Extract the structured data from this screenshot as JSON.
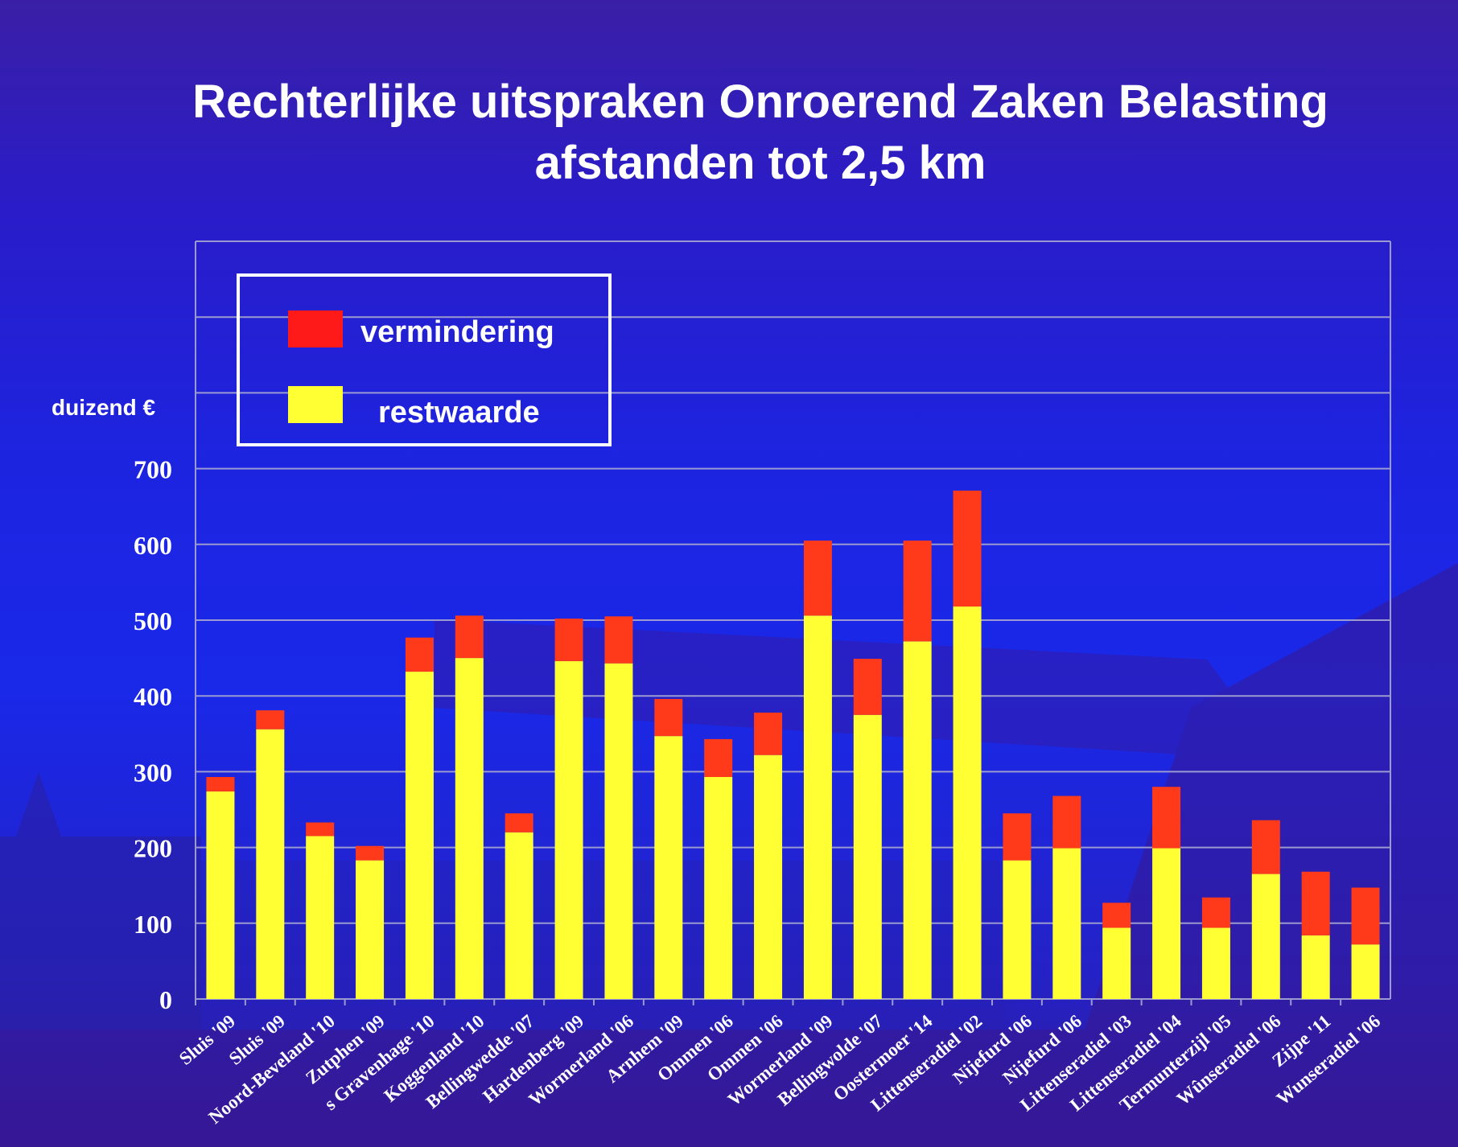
{
  "title": {
    "line1": "Rechterlijke uitspraken Onroerend Zaken Belasting",
    "line2": "afstanden tot 2,5 km"
  },
  "unit_label": "duizend €",
  "legend": {
    "items": [
      {
        "label": "vermindering",
        "color": "#ff1a1a"
      },
      {
        "label": "restwaarde",
        "color": "#ffff33"
      }
    ],
    "placement": "top-left"
  },
  "chart_data": {
    "type": "bar",
    "stacked": true,
    "ylim": [
      0,
      1000
    ],
    "yticks": [
      0,
      100,
      200,
      300,
      400,
      500,
      600,
      700
    ],
    "grid": true,
    "categories": [
      "Sluis '09",
      "Sluis '09",
      "Noord-Beveland '10",
      "Zutphen '09",
      "s Gravenhage '10",
      "Koggenland '10",
      "Bellingwedde '07",
      "Hardenberg '09",
      "Wormerland '06",
      "Arnhem '09",
      "Ommen '06",
      "Ommen '06",
      "Wormerland '09",
      "Bellingwolde '07",
      "Oostermoer '14",
      "Littenseradiel '02",
      "Nijefurd '06",
      "Nijefurd '06",
      "Littenseradiel '03",
      "Littenseradiel '04",
      "Termunterzijl '05",
      "Wûnseradiel '06",
      "Zijpe '11",
      "Wunseradiel '06"
    ],
    "series": [
      {
        "name": "restwaarde",
        "color": "#ffff33",
        "values": [
          274,
          356,
          215,
          183,
          432,
          450,
          220,
          446,
          443,
          347,
          293,
          322,
          506,
          375,
          472,
          518,
          183,
          199,
          94,
          199,
          94,
          165,
          84,
          72
        ]
      },
      {
        "name": "vermindering",
        "color": "#ff3a1a",
        "values": [
          19,
          25,
          18,
          19,
          45,
          56,
          25,
          56,
          62,
          49,
          50,
          56,
          99,
          74,
          133,
          153,
          62,
          69,
          33,
          81,
          40,
          71,
          84,
          75
        ]
      }
    ]
  }
}
